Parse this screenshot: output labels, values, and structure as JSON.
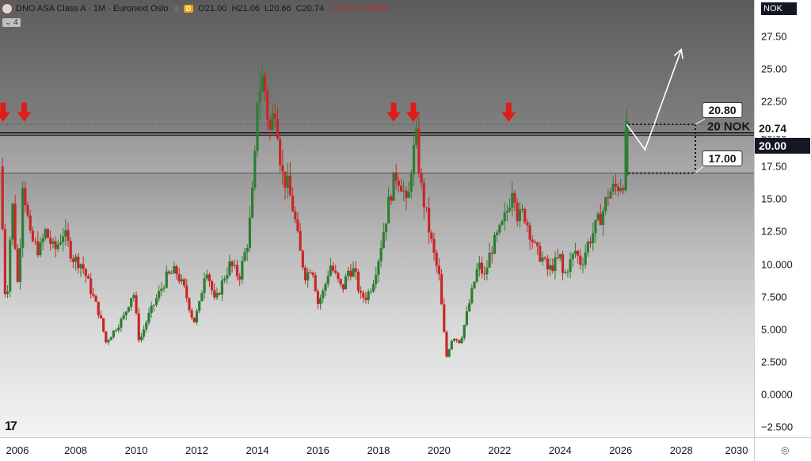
{
  "header": {
    "symbol": "DNO ASA Class A · 1M · Euronext Oslo",
    "source_badge": "D",
    "open": "O21.00",
    "high": "H21.06",
    "low": "L20.66",
    "close": "C20.74",
    "change": "−1.18 (−5.38%)",
    "collapse": "⌄ 4",
    "icons": [
      "symbol-logo-icon",
      "delay-snowflake-icon",
      "collapse-chevron-icon"
    ]
  },
  "currency": "NOK",
  "price_flags": {
    "last": "20.74",
    "level": "20.00"
  },
  "level_label": "20 NOK",
  "callouts": {
    "upper": "20.80",
    "lower": "17.00"
  },
  "colors": {
    "up": "#2e7d32",
    "down": "#c62828",
    "arrow": "#e01b1b",
    "level_line": "#111111",
    "projection": "#ffffff"
  },
  "chart_data": {
    "type": "candlestick",
    "title": "",
    "xlabel": "",
    "ylabel": "",
    "xlim": [
      2005.5,
      2030.4
    ],
    "ylim": [
      -3.3,
      30.3
    ],
    "y_scale": "linear",
    "grid": false,
    "yticks": [
      "27.50",
      "25.00",
      "22.50",
      "20.00",
      "17.50",
      "15.00",
      "12.50",
      "10.000",
      "7.500",
      "5.000",
      "2.500",
      "0.0000",
      "−2.500"
    ],
    "xticks": [
      "2006",
      "2008",
      "2010",
      "2012",
      "2014",
      "2016",
      "2018",
      "2020",
      "2022",
      "2024",
      "2026",
      "2028",
      "2030"
    ],
    "close_path": [
      [
        2005.5,
        17.5
      ],
      [
        2005.7,
        6
      ],
      [
        2005.9,
        15
      ],
      [
        2006.1,
        8
      ],
      [
        2006.25,
        16.5
      ],
      [
        2006.5,
        12
      ],
      [
        2006.8,
        11
      ],
      [
        2007.0,
        12.5
      ],
      [
        2007.3,
        11
      ],
      [
        2007.6,
        12.5
      ],
      [
        2007.9,
        10.5
      ],
      [
        2008.2,
        10
      ],
      [
        2008.5,
        8
      ],
      [
        2008.8,
        6
      ],
      [
        2009.0,
        4
      ],
      [
        2009.3,
        5
      ],
      [
        2009.6,
        6
      ],
      [
        2009.9,
        8
      ],
      [
        2010.1,
        4
      ],
      [
        2010.4,
        6
      ],
      [
        2010.7,
        7.5
      ],
      [
        2011.0,
        9
      ],
      [
        2011.3,
        9.5
      ],
      [
        2011.6,
        8
      ],
      [
        2011.9,
        5.5
      ],
      [
        2012.1,
        7
      ],
      [
        2012.3,
        10
      ],
      [
        2012.6,
        7
      ],
      [
        2012.9,
        9
      ],
      [
        2013.1,
        10
      ],
      [
        2013.4,
        9
      ],
      [
        2013.7,
        12
      ],
      [
        2013.9,
        17
      ],
      [
        2014.0,
        23
      ],
      [
        2014.2,
        24.5
      ],
      [
        2014.4,
        20
      ],
      [
        2014.6,
        22.5
      ],
      [
        2014.8,
        17
      ],
      [
        2015.0,
        16
      ],
      [
        2015.2,
        14
      ],
      [
        2015.4,
        11
      ],
      [
        2015.6,
        9
      ],
      [
        2015.8,
        10
      ],
      [
        2016.0,
        7
      ],
      [
        2016.2,
        8
      ],
      [
        2016.4,
        10
      ],
      [
        2016.6,
        9
      ],
      [
        2016.8,
        8
      ],
      [
        2017.0,
        9.5
      ],
      [
        2017.2,
        9.5
      ],
      [
        2017.4,
        7.5
      ],
      [
        2017.6,
        7.5
      ],
      [
        2017.8,
        8.5
      ],
      [
        2018.0,
        10.5
      ],
      [
        2018.2,
        13
      ],
      [
        2018.4,
        15.5
      ],
      [
        2018.6,
        17
      ],
      [
        2018.8,
        16
      ],
      [
        2018.95,
        14
      ],
      [
        2019.1,
        18
      ],
      [
        2019.25,
        19.5
      ],
      [
        2019.4,
        16
      ],
      [
        2019.6,
        13.5
      ],
      [
        2019.8,
        11
      ],
      [
        2020.0,
        9
      ],
      [
        2020.15,
        5
      ],
      [
        2020.25,
        2.9
      ],
      [
        2020.45,
        4.5
      ],
      [
        2020.7,
        4
      ],
      [
        2020.9,
        6
      ],
      [
        2021.1,
        8
      ],
      [
        2021.3,
        10
      ],
      [
        2021.5,
        9
      ],
      [
        2021.7,
        11
      ],
      [
        2021.9,
        12
      ],
      [
        2022.1,
        13
      ],
      [
        2022.3,
        14.5
      ],
      [
        2022.45,
        16.5
      ],
      [
        2022.6,
        13.5
      ],
      [
        2022.8,
        14
      ],
      [
        2023.0,
        12.5
      ],
      [
        2023.2,
        11
      ],
      [
        2023.4,
        10.5
      ],
      [
        2023.6,
        9.5
      ],
      [
        2023.8,
        10
      ],
      [
        2024.0,
        10.5
      ],
      [
        2024.1,
        9
      ],
      [
        2024.3,
        10
      ],
      [
        2024.5,
        11
      ],
      [
        2024.7,
        10
      ],
      [
        2024.9,
        11.5
      ],
      [
        2025.1,
        12.5
      ],
      [
        2025.4,
        14
      ],
      [
        2025.6,
        15.5
      ],
      [
        2025.9,
        16
      ],
      [
        2026.1,
        16.5
      ],
      [
        2026.2,
        20.74
      ]
    ],
    "markers": {
      "down_arrows_x": [
        2005.6,
        2006.3,
        2018.5,
        2019.15,
        2022.3
      ]
    },
    "horizontal_lines": [
      {
        "y": 20.0,
        "style": "solid-thick"
      },
      {
        "y": 20.74,
        "style": "dotted-thin"
      },
      {
        "y": 17.0,
        "style": "solid-thin"
      }
    ],
    "projection_path": [
      [
        2026.2,
        20.74
      ],
      [
        2026.8,
        18.8
      ],
      [
        2028.0,
        26.5
      ]
    ],
    "range_brackets": [
      {
        "from_y": 20.8,
        "label": "20.80"
      },
      {
        "from_y": 17.0,
        "label": "17.00"
      }
    ]
  }
}
